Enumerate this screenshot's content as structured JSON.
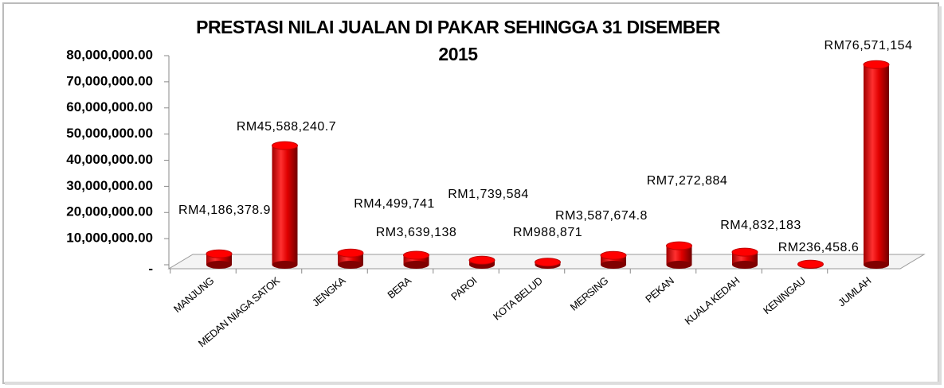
{
  "chart_data": {
    "type": "bar",
    "title": "PRESTASI NILAI JUALAN DI PAKAR SEHINGGA 31 DISEMBER 2015",
    "categories": [
      "MANJUNG",
      "MEDAN NIAGA SATOK",
      "JENGKA",
      "BERA",
      "PAROI",
      "KOTA BELUD",
      "MERSING",
      "PEKAN",
      "KUALA KEDAH",
      "KENINGAU",
      "JUMLAH"
    ],
    "values": [
      4186378.9,
      45588240.7,
      4499741,
      3639138,
      1739584,
      988871,
      3587674.8,
      7272884,
      4832183,
      236458.6,
      76571154
    ],
    "value_labels": [
      "RM4,186,378.9",
      "RM45,588,240.7",
      "RM4,499,741",
      "RM3,639,138",
      "RM1,739,584",
      "RM988,871",
      "RM3,587,674.8",
      "RM7,272,884",
      "RM4,832,183",
      "RM236,458.6",
      "RM76,571,154"
    ],
    "color": "#ff0000",
    "ylim": [
      0,
      80000000
    ],
    "yticks": [
      {
        "value": 0,
        "label": "-"
      },
      {
        "value": 10000000,
        "label": "10,000,000.00"
      },
      {
        "value": 20000000,
        "label": "20,000,000.00"
      },
      {
        "value": 30000000,
        "label": "30,000,000.00"
      },
      {
        "value": 40000000,
        "label": "40,000,000.00"
      },
      {
        "value": 50000000,
        "label": "50,000,000.00"
      },
      {
        "value": 60000000,
        "label": "60,000,000.00"
      },
      {
        "value": 70000000,
        "label": "70,000,000.00"
      },
      {
        "value": 80000000,
        "label": "80,000,000.00"
      }
    ]
  }
}
